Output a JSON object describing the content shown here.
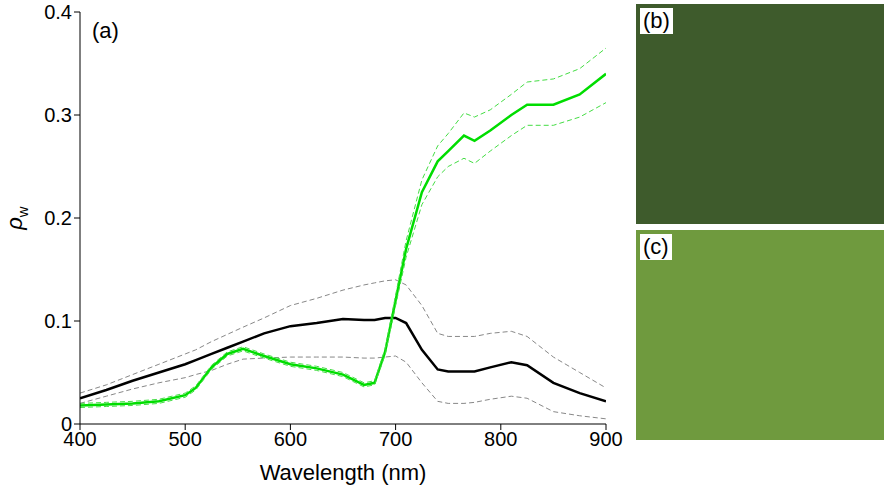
{
  "chart_data": {
    "type": "line",
    "panel": "(a)",
    "x_label": "Wavelength (nm)",
    "y_label": "ρw",
    "xlim": [
      400,
      900
    ],
    "xticks": [
      400,
      500,
      600,
      700,
      800,
      900
    ],
    "ylim": [
      0,
      0.4
    ],
    "yticks": [
      0,
      0.1,
      0.2,
      0.3,
      0.4
    ],
    "grid": false,
    "x": [
      400,
      425,
      450,
      475,
      500,
      510,
      525,
      540,
      555,
      575,
      600,
      625,
      650,
      670,
      680,
      690,
      700,
      710,
      725,
      740,
      750,
      765,
      775,
      790,
      810,
      825,
      850,
      875,
      900
    ],
    "series": [
      {
        "color": "#000000",
        "line_style": "solid",
        "values": [
          0.025,
          0.033,
          0.042,
          0.05,
          0.058,
          0.062,
          0.068,
          0.074,
          0.08,
          0.088,
          0.095,
          0.098,
          0.102,
          0.101,
          0.101,
          0.103,
          0.103,
          0.098,
          0.072,
          0.053,
          0.051,
          0.051,
          0.051,
          0.055,
          0.06,
          0.057,
          0.04,
          0.03,
          0.022
        ]
      },
      {
        "color": "#888888",
        "line_style": "dashed",
        "values": [
          0.03,
          0.038,
          0.048,
          0.058,
          0.068,
          0.072,
          0.08,
          0.087,
          0.094,
          0.103,
          0.115,
          0.122,
          0.13,
          0.135,
          0.137,
          0.139,
          0.14,
          0.135,
          0.115,
          0.088,
          0.085,
          0.085,
          0.085,
          0.088,
          0.09,
          0.085,
          0.065,
          0.05,
          0.035
        ]
      },
      {
        "color": "#888888",
        "line_style": "dashed",
        "values": [
          0.02,
          0.027,
          0.034,
          0.04,
          0.045,
          0.048,
          0.052,
          0.058,
          0.063,
          0.064,
          0.065,
          0.065,
          0.065,
          0.064,
          0.064,
          0.065,
          0.066,
          0.06,
          0.04,
          0.022,
          0.02,
          0.02,
          0.021,
          0.024,
          0.027,
          0.025,
          0.012,
          0.008,
          0.005
        ]
      },
      {
        "color": "#00dd00",
        "line_style": "solid",
        "values": [
          0.018,
          0.019,
          0.02,
          0.022,
          0.028,
          0.035,
          0.055,
          0.068,
          0.073,
          0.066,
          0.058,
          0.054,
          0.048,
          0.038,
          0.04,
          0.07,
          0.12,
          0.17,
          0.225,
          0.255,
          0.265,
          0.28,
          0.275,
          0.285,
          0.3,
          0.31,
          0.31,
          0.32,
          0.34
        ]
      },
      {
        "color": "#44dd44",
        "line_style": "dashed",
        "values": [
          0.02,
          0.021,
          0.022,
          0.024,
          0.03,
          0.037,
          0.057,
          0.07,
          0.075,
          0.068,
          0.06,
          0.056,
          0.05,
          0.04,
          0.042,
          0.073,
          0.125,
          0.178,
          0.237,
          0.27,
          0.282,
          0.302,
          0.298,
          0.305,
          0.32,
          0.332,
          0.335,
          0.345,
          0.365
        ]
      },
      {
        "color": "#44dd44",
        "line_style": "dashed",
        "values": [
          0.016,
          0.017,
          0.018,
          0.02,
          0.026,
          0.033,
          0.053,
          0.066,
          0.071,
          0.064,
          0.056,
          0.052,
          0.046,
          0.036,
          0.038,
          0.067,
          0.115,
          0.162,
          0.213,
          0.24,
          0.25,
          0.258,
          0.253,
          0.265,
          0.28,
          0.29,
          0.29,
          0.298,
          0.312
        ]
      }
    ]
  },
  "panels": [
    {
      "label": "(b)"
    },
    {
      "label": "(c)"
    }
  ]
}
